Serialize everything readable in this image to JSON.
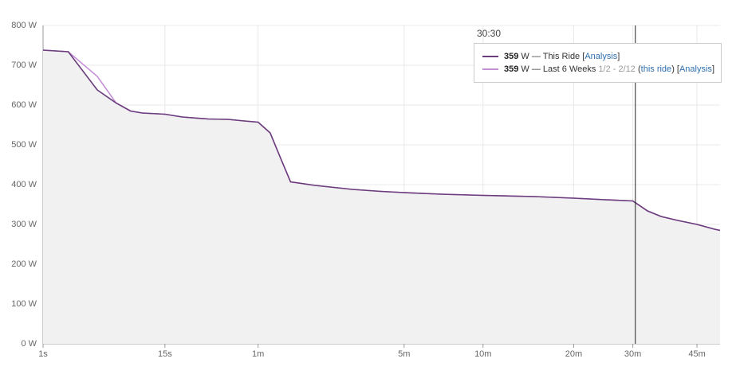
{
  "chart_data": {
    "type": "line",
    "xscale": "pow",
    "exponent": 0.2,
    "xlim": [
      1,
      3100
    ],
    "ylim": [
      0,
      800
    ],
    "xticks": [
      {
        "value": 1,
        "label": "1s"
      },
      {
        "value": 15,
        "label": "15s"
      },
      {
        "value": 60,
        "label": "1m"
      },
      {
        "value": 300,
        "label": "5m"
      },
      {
        "value": 600,
        "label": "10m"
      },
      {
        "value": 1200,
        "label": "20m"
      },
      {
        "value": 1800,
        "label": "30m"
      },
      {
        "value": 2700,
        "label": "45m"
      }
    ],
    "yticks": [
      {
        "value": 0,
        "label": "0 W"
      },
      {
        "value": 100,
        "label": "100 W"
      },
      {
        "value": 200,
        "label": "200 W"
      },
      {
        "value": 300,
        "label": "300 W"
      },
      {
        "value": 400,
        "label": "400 W"
      },
      {
        "value": 500,
        "label": "500 W"
      },
      {
        "value": 600,
        "label": "600 W"
      },
      {
        "value": 700,
        "label": "700 W"
      },
      {
        "value": 800,
        "label": "800 W"
      }
    ],
    "grid": true,
    "x": [
      1,
      2,
      4,
      6,
      8,
      10,
      15,
      20,
      30,
      40,
      50,
      60,
      70,
      80,
      90,
      120,
      180,
      240,
      300,
      420,
      600,
      900,
      1200,
      1500,
      1800,
      1980,
      2160,
      2400,
      2700,
      3000,
      3100
    ],
    "series": [
      {
        "name": "This Ride",
        "color": "#6b3d7d",
        "values": [
          738,
          734,
          638,
          605,
          585,
          580,
          577,
          570,
          565,
          564,
          560,
          557,
          530,
          465,
          407,
          398,
          388,
          383,
          380,
          376,
          373,
          370,
          366,
          362,
          359,
          334,
          320,
          310,
          300,
          288,
          285
        ]
      },
      {
        "name": "Last 6 Weeks",
        "color": "#c591d6",
        "values": [
          738,
          734,
          672,
          605,
          585,
          580,
          577,
          570,
          565,
          564,
          560,
          557,
          530,
          465,
          407,
          398,
          388,
          383,
          380,
          376,
          373,
          370,
          366,
          362,
          359,
          334,
          320,
          310,
          300,
          288,
          285
        ]
      }
    ],
    "tooltip": {
      "x": 1830,
      "label": "30:30",
      "entries": [
        {
          "value": 359,
          "unit": " W — ",
          "parts": [
            {
              "text": " ["
            },
            {
              "text": "Analysis",
              "link": true
            },
            {
              "text": "]"
            }
          ]
        },
        {
          "value": 359,
          "unit": " W — ",
          "parts": [
            {
              "text": " "
            },
            {
              "text": "1/2 - 2/12",
              "muted": true
            },
            {
              "text": " ("
            },
            {
              "text": "this ride",
              "link": true
            },
            {
              "text": ") ["
            },
            {
              "text": "Analysis",
              "link": true
            },
            {
              "text": "]"
            }
          ]
        }
      ]
    }
  }
}
